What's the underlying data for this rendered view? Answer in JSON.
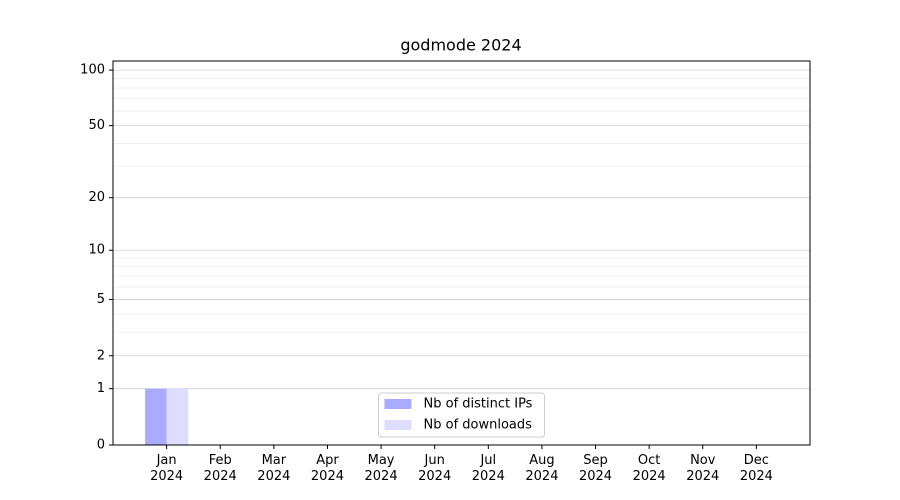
{
  "chart_data": {
    "type": "bar",
    "title": "godmode 2024",
    "categories": [
      "Jan 2024",
      "Feb 2024",
      "Mar 2024",
      "Apr 2024",
      "May 2024",
      "Jun 2024",
      "Jul 2024",
      "Aug 2024",
      "Sep 2024",
      "Oct 2024",
      "Nov 2024",
      "Dec 2024"
    ],
    "series": [
      {
        "name": "Nb of distinct IPs",
        "color": "#aaaaff",
        "values": [
          1,
          0,
          0,
          0,
          0,
          0,
          0,
          0,
          0,
          0,
          0,
          0
        ]
      },
      {
        "name": "Nb of downloads",
        "color": "#ddddff",
        "values": [
          1,
          0,
          0,
          0,
          0,
          0,
          0,
          0,
          0,
          0,
          0,
          0
        ]
      }
    ],
    "yscale": "log1p",
    "ylim": [
      0,
      112
    ],
    "yticks": [
      0,
      1,
      2,
      5,
      10,
      20,
      50,
      100
    ],
    "yminorticks": [
      3,
      4,
      6,
      7,
      8,
      9,
      30,
      40,
      60,
      70,
      80,
      90
    ],
    "grid": true,
    "legend": "lower center"
  }
}
